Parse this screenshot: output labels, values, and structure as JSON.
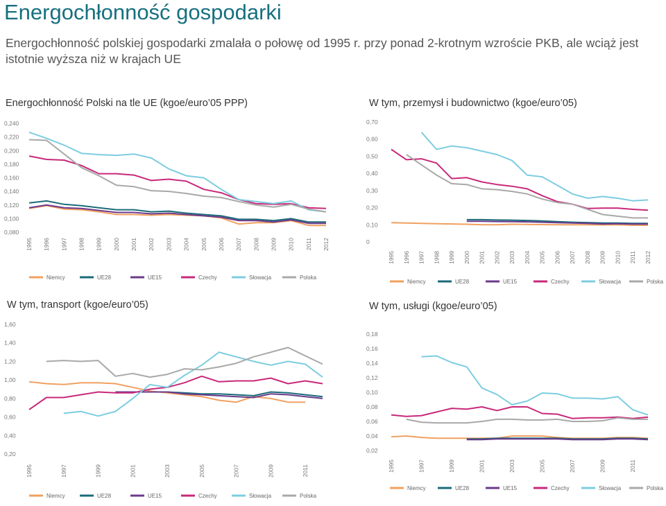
{
  "page": {
    "title": "Energochłonność gospodarki",
    "subtitle": "Energochłonność polskiej gospodarki zmalała o połowę od 1995 r. przy ponad 2-krotnym wzroście PKB, ale wciąż jest istotnie wyższa niż w krajach UE"
  },
  "colors": {
    "Niemcy": "#f0a060",
    "UE28": "#1a6b78",
    "UE15": "#6b3a8c",
    "Czechy": "#c8287a",
    "Słowacja": "#7ccde0",
    "Polska": "#a8a8a8"
  },
  "chart_data": [
    {
      "type": "line",
      "title": "Energochłonność Polski na tle UE (kgoe/euro’05 PPP)",
      "x": [
        "1995",
        "1996",
        "1997",
        "1998",
        "1999",
        "2000",
        "2001",
        "2002",
        "2003",
        "2004",
        "2005",
        "2006",
        "2007",
        "2008",
        "2009",
        "2010",
        "2011",
        "2012"
      ],
      "yticks": [
        "0,080",
        "0,100",
        "0,120",
        "0,140",
        "0,160",
        "0,180",
        "0,200",
        "0,220",
        "0,240"
      ],
      "ylim": [
        0.08,
        0.24
      ],
      "legend_position": "bottom",
      "series": [
        {
          "name": "Niemcy",
          "values": [
            0.115,
            0.119,
            0.114,
            0.113,
            0.11,
            0.106,
            0.106,
            0.105,
            0.106,
            0.105,
            0.104,
            0.101,
            0.092,
            0.094,
            0.094,
            0.097,
            0.09,
            0.09
          ]
        },
        {
          "name": "UE28",
          "values": [
            0.123,
            0.126,
            0.121,
            0.119,
            0.116,
            0.113,
            0.113,
            0.11,
            0.111,
            0.108,
            0.106,
            0.104,
            0.099,
            0.099,
            0.097,
            0.1,
            0.095,
            0.095
          ]
        },
        {
          "name": "UE15",
          "values": [
            0.116,
            0.12,
            0.116,
            0.115,
            0.112,
            0.109,
            0.109,
            0.107,
            0.108,
            0.106,
            0.104,
            0.102,
            0.097,
            0.097,
            0.095,
            0.098,
            0.093,
            0.093
          ]
        },
        {
          "name": "Czechy",
          "values": [
            0.192,
            0.187,
            0.186,
            0.178,
            0.166,
            0.166,
            0.164,
            0.156,
            0.158,
            0.155,
            0.143,
            0.138,
            0.128,
            0.122,
            0.121,
            0.122,
            0.116,
            0.115
          ]
        },
        {
          "name": "Słowacja",
          "values": [
            0.227,
            0.218,
            0.208,
            0.196,
            0.194,
            0.193,
            0.195,
            0.189,
            0.173,
            0.163,
            0.16,
            0.143,
            0.128,
            0.125,
            0.122,
            0.126,
            0.113,
            0.11
          ]
        },
        {
          "name": "Polska",
          "values": [
            0.216,
            0.215,
            0.195,
            0.175,
            0.163,
            0.149,
            0.147,
            0.141,
            0.14,
            0.137,
            0.133,
            0.131,
            0.125,
            0.12,
            0.117,
            0.121,
            0.114,
            0.11
          ]
        }
      ]
    },
    {
      "type": "line",
      "title": "W tym, przemysł i budownictwo (kgoe/euro’05)",
      "x": [
        "1995",
        "1996",
        "1997",
        "1998",
        "1999",
        "2000",
        "2001",
        "2002",
        "2003",
        "2004",
        "2005",
        "2006",
        "2007",
        "2008",
        "2009",
        "2010",
        "2011",
        "2012"
      ],
      "yticks": [
        "0",
        "0,10",
        "0,20",
        "0,30",
        "0,40",
        "0,50",
        "0,60",
        "0,70"
      ],
      "ylim": [
        0,
        0.7
      ],
      "legend_position": "bottom",
      "series": [
        {
          "name": "Niemcy",
          "values": [
            0.112,
            0.11,
            0.108,
            0.106,
            0.105,
            0.103,
            0.1,
            0.1,
            0.103,
            0.102,
            0.101,
            0.1,
            0.1,
            0.1,
            0.099,
            0.1,
            0.097,
            0.097
          ]
        },
        {
          "name": "UE28",
          "values": [
            null,
            null,
            null,
            null,
            null,
            0.13,
            0.13,
            0.128,
            0.127,
            0.125,
            0.122,
            0.118,
            0.115,
            0.113,
            0.11,
            0.11,
            0.108,
            0.108
          ]
        },
        {
          "name": "UE15",
          "values": [
            null,
            null,
            null,
            null,
            null,
            0.12,
            0.12,
            0.119,
            0.118,
            0.117,
            0.115,
            0.112,
            0.11,
            0.108,
            0.105,
            0.106,
            0.104,
            0.104
          ]
        },
        {
          "name": "Czechy",
          "values": [
            0.54,
            0.48,
            0.485,
            0.46,
            0.37,
            0.375,
            0.35,
            0.335,
            0.325,
            0.31,
            0.27,
            0.235,
            0.22,
            0.195,
            0.197,
            0.197,
            0.19,
            0.185
          ]
        },
        {
          "name": "Słowacja",
          "values": [
            null,
            null,
            0.64,
            0.54,
            0.56,
            0.55,
            0.53,
            0.51,
            0.475,
            0.39,
            0.38,
            0.33,
            0.28,
            0.255,
            0.265,
            0.255,
            0.24,
            0.245
          ]
        },
        {
          "name": "Polska",
          "values": [
            null,
            0.51,
            0.45,
            0.39,
            0.34,
            0.335,
            0.31,
            0.305,
            0.295,
            0.28,
            0.25,
            0.23,
            0.22,
            0.19,
            0.16,
            0.15,
            0.14,
            0.14
          ]
        }
      ]
    },
    {
      "type": "line",
      "title": "W tym, transport (kgoe/euro’05)",
      "x": [
        "1995",
        "1996",
        "1997",
        "1998",
        "1999",
        "2000",
        "2001",
        "2002",
        "2003",
        "2004",
        "2005",
        "2006",
        "2007",
        "2008",
        "2009",
        "2010",
        "2011",
        "2012"
      ],
      "xticks": [
        "1995",
        "1997",
        "1999",
        "2001",
        "2003",
        "2005",
        "2007",
        "2009",
        "2011"
      ],
      "yticks": [
        "0,20",
        "0,40",
        "0,60",
        "0,80",
        "1,00",
        "1,20",
        "1,40",
        "1,60"
      ],
      "ylim": [
        0.2,
        1.6
      ],
      "legend_position": "bottom",
      "series": [
        {
          "name": "Niemcy",
          "values": [
            0.98,
            0.96,
            0.95,
            0.97,
            0.97,
            0.96,
            0.92,
            0.88,
            0.86,
            0.84,
            0.82,
            0.78,
            0.76,
            0.82,
            0.8,
            0.76,
            0.76,
            null
          ]
        },
        {
          "name": "UE28",
          "values": [
            null,
            null,
            null,
            null,
            null,
            0.87,
            0.87,
            0.87,
            0.87,
            0.86,
            0.85,
            0.85,
            0.84,
            0.83,
            0.87,
            0.86,
            0.84,
            0.82
          ]
        },
        {
          "name": "UE15",
          "values": [
            null,
            null,
            null,
            null,
            null,
            0.87,
            0.87,
            0.87,
            0.87,
            0.85,
            0.84,
            0.83,
            0.82,
            0.81,
            0.85,
            0.84,
            0.82,
            0.8
          ]
        },
        {
          "name": "Czechy",
          "values": [
            0.68,
            0.81,
            0.81,
            0.84,
            0.87,
            0.86,
            0.86,
            0.9,
            0.92,
            0.97,
            1.04,
            0.98,
            0.99,
            0.99,
            1.02,
            0.96,
            0.99,
            0.96
          ]
        },
        {
          "name": "Słowacja",
          "values": [
            null,
            null,
            0.64,
            0.66,
            0.61,
            0.66,
            0.8,
            0.95,
            0.92,
            1.05,
            1.16,
            1.3,
            1.25,
            1.2,
            1.16,
            1.2,
            1.17,
            1.03
          ]
        },
        {
          "name": "Polska",
          "values": [
            null,
            1.2,
            1.21,
            1.2,
            1.21,
            1.04,
            1.07,
            1.03,
            1.06,
            1.12,
            1.11,
            1.14,
            1.18,
            1.25,
            1.3,
            1.35,
            1.26,
            1.17
          ]
        }
      ]
    },
    {
      "type": "line",
      "title": "W tym, usługi (kgoe/euro’05)",
      "x": [
        "1995",
        "1996",
        "1997",
        "1998",
        "1999",
        "2000",
        "2001",
        "2002",
        "2003",
        "2004",
        "2005",
        "2006",
        "2007",
        "2008",
        "2009",
        "2010",
        "2011",
        "2012"
      ],
      "xticks": [
        "1995",
        "1997",
        "1999",
        "2001",
        "2003",
        "2005",
        "2007",
        "2009",
        "2011"
      ],
      "yticks": [
        "0,02",
        "0,04",
        "0,06",
        "0,08",
        "0,10",
        "0,12",
        "0,14",
        "0,16",
        "0,18"
      ],
      "ylim": [
        0.02,
        0.18
      ],
      "legend_position": "bottom",
      "series": [
        {
          "name": "Niemcy",
          "values": [
            0.039,
            0.04,
            0.038,
            0.037,
            0.037,
            0.037,
            0.037,
            0.037,
            0.04,
            0.04,
            0.04,
            0.038,
            0.037,
            0.037,
            0.037,
            0.038,
            0.038,
            0.037
          ]
        },
        {
          "name": "UE28",
          "values": [
            null,
            null,
            null,
            null,
            null,
            0.036,
            0.036,
            0.037,
            0.037,
            0.037,
            0.037,
            0.037,
            0.036,
            0.036,
            0.036,
            0.037,
            0.037,
            0.036
          ]
        },
        {
          "name": "UE15",
          "values": [
            null,
            null,
            null,
            null,
            null,
            0.035,
            0.035,
            0.036,
            0.036,
            0.036,
            0.036,
            0.036,
            0.035,
            0.035,
            0.035,
            0.036,
            0.036,
            0.035
          ]
        },
        {
          "name": "Czechy",
          "values": [
            0.069,
            0.067,
            0.068,
            0.073,
            0.078,
            0.077,
            0.08,
            0.075,
            0.08,
            0.08,
            0.071,
            0.07,
            0.064,
            0.065,
            0.065,
            0.066,
            0.064,
            0.066
          ]
        },
        {
          "name": "Słowacja",
          "values": [
            null,
            null,
            0.149,
            0.15,
            0.141,
            0.135,
            0.106,
            0.097,
            0.083,
            0.088,
            0.099,
            0.098,
            0.092,
            0.092,
            0.091,
            0.094,
            0.076,
            0.069
          ]
        },
        {
          "name": "Polska",
          "values": [
            null,
            0.063,
            0.059,
            0.058,
            0.058,
            0.058,
            0.06,
            0.063,
            0.063,
            0.062,
            0.062,
            0.063,
            0.06,
            0.06,
            0.061,
            0.065,
            0.063,
            0.063
          ]
        }
      ]
    }
  ]
}
